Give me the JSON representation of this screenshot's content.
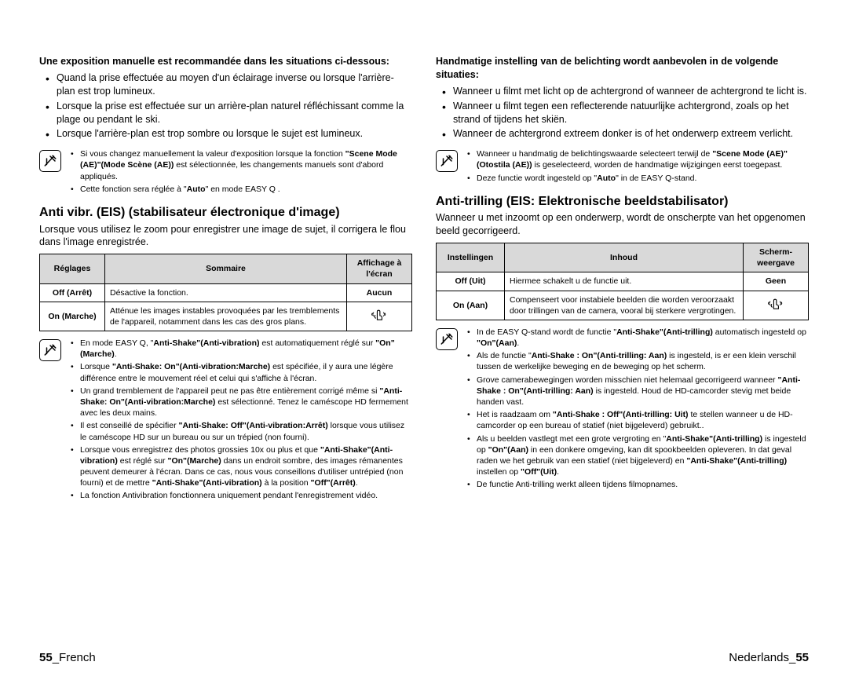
{
  "left": {
    "intro_title": "Une exposition manuelle est recommandée dans les situations ci-dessous:",
    "intro_bullets": [
      "Quand la prise effectuée au moyen d'un éclairage inverse ou lorsque l'arrière-plan est trop lumineux.",
      "Lorsque la prise est effectuée sur un arrière-plan naturel réfléchissant comme la plage ou pendant le ski.",
      "Lorsque l'arrière-plan est trop sombre ou lorsque le sujet est lumineux."
    ],
    "note1": [
      "Si vous changez manuellement la valeur d'exposition lorsque la fonction <b>\"Scene Mode (AE)\"(Mode Scène (AE))</b> est sélectionnée, les changements manuels sont d'abord appliqués.",
      "Cette fonction sera réglée à \"<b>Auto</b>\" en mode EASY Q ."
    ],
    "section_title": "Anti vibr. (EIS) (stabilisateur électronique d'image)",
    "section_intro": "Lorsque vous utilisez le zoom pour enregistrer une image de sujet, il corrigera le flou dans l'image enregistrée.",
    "table": {
      "headers": [
        "Réglages",
        "Sommaire",
        "Affichage à l'écran"
      ],
      "rows": [
        {
          "setting": "Off (Arrêt)",
          "summary": "Désactive la fonction.",
          "display": "Aucun",
          "icon": false
        },
        {
          "setting": "On (Marche)",
          "summary": "Atténue les images instables provoquées par les tremblements de l'appareil, notamment dans les cas des gros plans.",
          "display": "",
          "icon": true
        }
      ]
    },
    "note2": [
      "En mode EASY Q, \"<b>Anti-Shake\"(Anti-vibration)</b> est automatiquement réglé sur <b>\"On\"(Marche)</b>.",
      "Lorsque <b>\"Anti-Shake: On\"(Anti-vibration:Marche)</b> est spécifiée, il y aura une légère différence entre le mouvement réel et celui qui s'affiche à l'écran.",
      "Un grand tremblement de l'appareil peut ne pas être entièrement corrigé même si <b>\"Anti-Shake: On\"(Anti-vibration:Marche)</b> est sélectionné. Tenez le caméscope HD fermement avec les deux mains.",
      "Il est conseillé de spécifier <b>\"Anti-Shake: Off\"(Anti-vibration:Arrêt)</b> lorsque vous utilisez le caméscope HD sur un bureau ou sur un trépied (non fourni).",
      "Lorsque vous enregistrez des photos grossies 10x ou plus et que <b>\"Anti-Shake\"(Anti-vibration)</b> est réglé sur <b>\"On\"(Marche)</b> dans un endroit sombre, des images rémanentes peuvent demeurer à l'écran. Dans ce cas, nous vous conseillons d'utiliser untrépied (non fourni) et de mettre <b>\"Anti-Shake\"(Anti-vibration)</b> à la position <b>\"Off\"(Arrêt)</b>.",
      "La fonction Antivibration fonctionnera uniquement pendant l'enregistrement vidéo."
    ],
    "footer_page": "55",
    "footer_lang": "French"
  },
  "right": {
    "intro_title": "Handmatige instelling van de belichting wordt aanbevolen in de volgende situaties:",
    "intro_bullets": [
      "Wanneer u filmt met licht op de achtergrond of wanneer de achtergrond te licht is.",
      "Wanneer u filmt tegen een reflecterende natuurlijke achtergrond, zoals op het strand of tijdens het skiën.",
      "Wanneer de achtergrond extreem donker is of het onderwerp extreem verlicht."
    ],
    "note1": [
      "Wanneer u handmatig de belichtingswaarde selecteert terwijl de <b>\"Scene Mode (AE)\"(Otostila (AE))</b> is geselecteerd, worden de handmatige wijzigingen eerst toegepast.",
      "Deze functie wordt ingesteld op \"<b>Auto</b>\" in de EASY Q-stand."
    ],
    "section_title": "Anti-trilling (EIS: Elektronische beeldstabilisator)",
    "section_intro": "Wanneer u met inzoomt op een onderwerp, wordt de onscherpte van het opgenomen beeld gecorrigeerd.",
    "table": {
      "headers": [
        "Instellingen",
        "Inhoud",
        "Scherm-weergave"
      ],
      "rows": [
        {
          "setting": "Off (Uit)",
          "summary": "Hiermee schakelt u de functie uit.",
          "display": "Geen",
          "icon": false
        },
        {
          "setting": "On (Aan)",
          "summary": "Compenseert voor instabiele beelden die worden veroorzaakt door trillingen van de camera, vooral bij sterkere vergrotingen.",
          "display": "",
          "icon": true
        }
      ]
    },
    "note2": [
      "In de EASY Q-stand wordt de functie \"<b>Anti-Shake\"(Anti-trilling)</b> automatisch ingesteld op <b>\"On\"(Aan)</b>.",
      "Als de functie \"<b>Anti-Shake : On\"(Anti-trilling: Aan)</b> is ingesteld, is er een klein verschil tussen de werkelijke beweging en de beweging op het scherm.",
      "Grove camerabewegingen worden misschien niet helemaal gecorrigeerd wanneer <b>\"Anti-Shake : On\"(Anti-trilling: Aan)</b> is ingesteld. Houd de HD-camcorder stevig met beide handen vast.",
      "Het is raadzaam om <b>\"Anti-Shake : Off\"(Anti-trilling: Uit)</b> te stellen wanneer u de HD-camcorder op een bureau of statief (niet bijgeleverd) gebruikt..",
      "Als u beelden vastlegt met een grote vergroting en \"<b>Anti-Shake\"(Anti-trilling)</b> is ingesteld op <b>\"On\"(Aan)</b> in een donkere omgeving, kan dit spookbeelden opleveren. In dat geval raden we het gebruik van een statief (niet bijgeleverd) en <b>\"Anti-Shake\"(Anti-trilling)</b> instellen op <b>\"Off\"(Uit)</b>.",
      "De functie Anti-trilling werkt alleen tijdens filmopnames."
    ],
    "footer_lang": "Nederlands",
    "footer_page": "55"
  },
  "colors": {
    "header_bg": "#d9d9d9",
    "text": "#000000",
    "bg": "#ffffff"
  }
}
